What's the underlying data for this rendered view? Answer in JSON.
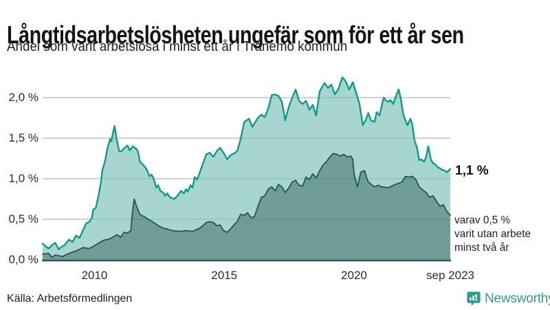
{
  "header": {
    "title": "Långtidsarbetslösheten ungefär som för ett år sen",
    "subtitle": "Andel som varit arbetslösa i minst ett år i Tranemo kommun"
  },
  "footer": {
    "source": "Källa: Arbetsförmedlingen",
    "brand": "Newsworthy",
    "brand_color": "#38998f"
  },
  "chart_data": {
    "type": "area",
    "title": "Långtidsarbetslösheten ungefär som för ett år sen",
    "subtitle": "Andel som varit arbetslösa i minst ett år i Tranemo kommun",
    "unit": "%",
    "grid": true,
    "legend_position": "none",
    "x_range": [
      2008.0,
      2023.71
    ],
    "ylim": [
      0,
      2.3
    ],
    "colors": {
      "series1_fill": "#a7d5cf",
      "series1_stroke": "#12988a",
      "series2_fill": "#6f9e99",
      "series2_stroke": "#2f4f4a",
      "gridline": "#d9d9d9",
      "axis": "#40514e"
    },
    "y_ticks": [
      {
        "label": "2,0 %",
        "value": 2.0
      },
      {
        "label": "1,5 %",
        "value": 1.5
      },
      {
        "label": "1,0 %",
        "value": 1.0
      },
      {
        "label": "0,5 %",
        "value": 0.5
      },
      {
        "label": "0,0 %",
        "value": 0.0
      }
    ],
    "x_ticks": [
      {
        "label": "2010",
        "value": 2010
      },
      {
        "label": "2015",
        "value": 2015
      },
      {
        "label": "2020",
        "value": 2020
      },
      {
        "label": "sep 2023",
        "value": 2023.71
      }
    ],
    "end_labels": {
      "primary": "1,1 %",
      "secondary_line1": "varav 0,5 %",
      "secondary_line2": "varit utan arbete",
      "secondary_line3": "minst två år"
    },
    "series": [
      {
        "name": "Arbetslösa minst ett år",
        "last_value": 1.1,
        "points": [
          [
            2008.0,
            0.2
          ],
          [
            2008.1,
            0.17
          ],
          [
            2008.23,
            0.14
          ],
          [
            2008.35,
            0.18
          ],
          [
            2008.49,
            0.21
          ],
          [
            2008.62,
            0.13
          ],
          [
            2008.73,
            0.16
          ],
          [
            2008.84,
            0.18
          ],
          [
            2009.02,
            0.25
          ],
          [
            2009.15,
            0.22
          ],
          [
            2009.29,
            0.3
          ],
          [
            2009.42,
            0.27
          ],
          [
            2009.55,
            0.36
          ],
          [
            2009.68,
            0.45
          ],
          [
            2009.81,
            0.47
          ],
          [
            2009.9,
            0.52
          ],
          [
            2009.95,
            0.62
          ],
          [
            2010.05,
            0.64
          ],
          [
            2010.15,
            0.79
          ],
          [
            2010.25,
            0.96
          ],
          [
            2010.3,
            1.1
          ],
          [
            2010.4,
            1.21
          ],
          [
            2010.5,
            1.38
          ],
          [
            2010.6,
            1.49
          ],
          [
            2010.65,
            1.46
          ],
          [
            2010.7,
            1.55
          ],
          [
            2010.77,
            1.65
          ],
          [
            2010.85,
            1.49
          ],
          [
            2010.95,
            1.34
          ],
          [
            2011.05,
            1.34
          ],
          [
            2011.15,
            1.38
          ],
          [
            2011.27,
            1.41
          ],
          [
            2011.35,
            1.35
          ],
          [
            2011.48,
            1.4
          ],
          [
            2011.6,
            1.37
          ],
          [
            2011.67,
            1.34
          ],
          [
            2011.75,
            1.21
          ],
          [
            2011.85,
            1.18
          ],
          [
            2011.93,
            1.15
          ],
          [
            2012.0,
            1.12
          ],
          [
            2012.12,
            1.03
          ],
          [
            2012.2,
            1.05
          ],
          [
            2012.28,
            1.0
          ],
          [
            2012.38,
            0.89
          ],
          [
            2012.45,
            0.92
          ],
          [
            2012.54,
            0.85
          ],
          [
            2012.65,
            0.83
          ],
          [
            2012.72,
            0.79
          ],
          [
            2012.8,
            0.82
          ],
          [
            2012.91,
            0.77
          ],
          [
            2013.07,
            0.75
          ],
          [
            2013.2,
            0.79
          ],
          [
            2013.33,
            0.85
          ],
          [
            2013.45,
            0.82
          ],
          [
            2013.52,
            0.87
          ],
          [
            2013.6,
            0.84
          ],
          [
            2013.7,
            0.92
          ],
          [
            2013.78,
            0.89
          ],
          [
            2013.86,
            1.02
          ],
          [
            2013.95,
            0.99
          ],
          [
            2014.05,
            1.07
          ],
          [
            2014.18,
            1.19
          ],
          [
            2014.31,
            1.3
          ],
          [
            2014.44,
            1.32
          ],
          [
            2014.58,
            1.27
          ],
          [
            2014.71,
            1.34
          ],
          [
            2014.84,
            1.38
          ],
          [
            2014.97,
            1.32
          ],
          [
            2015.11,
            1.24
          ],
          [
            2015.24,
            1.29
          ],
          [
            2015.37,
            1.31
          ],
          [
            2015.5,
            1.34
          ],
          [
            2015.63,
            1.49
          ],
          [
            2015.77,
            1.7
          ],
          [
            2015.95,
            1.74
          ],
          [
            2016.08,
            1.64
          ],
          [
            2016.2,
            1.7
          ],
          [
            2016.3,
            1.75
          ],
          [
            2016.43,
            1.79
          ],
          [
            2016.56,
            1.76
          ],
          [
            2016.69,
            1.86
          ],
          [
            2016.83,
            2.03
          ],
          [
            2016.96,
            2.04
          ],
          [
            2017.09,
            2.02
          ],
          [
            2017.22,
            1.95
          ],
          [
            2017.35,
            1.72
          ],
          [
            2017.49,
            1.89
          ],
          [
            2017.62,
            2.0
          ],
          [
            2017.75,
            2.1
          ],
          [
            2017.88,
            1.96
          ],
          [
            2018.02,
            1.92
          ],
          [
            2018.15,
            1.96
          ],
          [
            2018.28,
            1.85
          ],
          [
            2018.41,
            1.91
          ],
          [
            2018.54,
            1.78
          ],
          [
            2018.68,
            2.08
          ],
          [
            2018.86,
            2.18
          ],
          [
            2019.0,
            2.12
          ],
          [
            2019.13,
            2.16
          ],
          [
            2019.26,
            2.04
          ],
          [
            2019.39,
            2.1
          ],
          [
            2019.55,
            2.25
          ],
          [
            2019.68,
            2.2
          ],
          [
            2019.81,
            2.1
          ],
          [
            2019.95,
            2.19
          ],
          [
            2020.08,
            2.06
          ],
          [
            2020.21,
            1.92
          ],
          [
            2020.34,
            1.66
          ],
          [
            2020.45,
            1.72
          ],
          [
            2020.55,
            1.81
          ],
          [
            2020.65,
            1.72
          ],
          [
            2020.79,
            1.7
          ],
          [
            2020.87,
            1.82
          ],
          [
            2020.98,
            1.78
          ],
          [
            2021.06,
            1.89
          ],
          [
            2021.14,
            2.0
          ],
          [
            2021.24,
            1.96
          ],
          [
            2021.32,
            1.95
          ],
          [
            2021.4,
            1.97
          ],
          [
            2021.51,
            1.92
          ],
          [
            2021.64,
            2.04
          ],
          [
            2021.72,
            2.1
          ],
          [
            2021.8,
            1.99
          ],
          [
            2021.9,
            1.79
          ],
          [
            2021.98,
            1.72
          ],
          [
            2022.06,
            1.66
          ],
          [
            2022.17,
            1.74
          ],
          [
            2022.25,
            1.66
          ],
          [
            2022.33,
            1.47
          ],
          [
            2022.43,
            1.38
          ],
          [
            2022.51,
            1.23
          ],
          [
            2022.59,
            1.24
          ],
          [
            2022.7,
            1.21
          ],
          [
            2022.78,
            1.27
          ],
          [
            2022.86,
            1.4
          ],
          [
            2022.96,
            1.24
          ],
          [
            2023.04,
            1.19
          ],
          [
            2023.12,
            1.18
          ],
          [
            2023.23,
            1.14
          ],
          [
            2023.31,
            1.13
          ],
          [
            2023.39,
            1.11
          ],
          [
            2023.49,
            1.1
          ],
          [
            2023.57,
            1.08
          ],
          [
            2023.71,
            1.12
          ]
        ]
      },
      {
        "name": "varav arbetslösa minst två år",
        "last_value": 0.5,
        "points": [
          [
            2008.0,
            0.07
          ],
          [
            2008.23,
            0.08
          ],
          [
            2008.36,
            0.03
          ],
          [
            2008.49,
            0.06
          ],
          [
            2008.76,
            0.04
          ],
          [
            2009.02,
            0.08
          ],
          [
            2009.29,
            0.11
          ],
          [
            2009.55,
            0.15
          ],
          [
            2009.81,
            0.14
          ],
          [
            2010.08,
            0.19
          ],
          [
            2010.34,
            0.24
          ],
          [
            2010.61,
            0.26
          ],
          [
            2010.87,
            0.31
          ],
          [
            2011.01,
            0.28
          ],
          [
            2011.14,
            0.34
          ],
          [
            2011.27,
            0.33
          ],
          [
            2011.4,
            0.36
          ],
          [
            2011.45,
            0.55
          ],
          [
            2011.53,
            0.75
          ],
          [
            2011.6,
            0.68
          ],
          [
            2011.67,
            0.62
          ],
          [
            2011.75,
            0.56
          ],
          [
            2011.93,
            0.53
          ],
          [
            2012.12,
            0.49
          ],
          [
            2012.28,
            0.46
          ],
          [
            2012.46,
            0.42
          ],
          [
            2012.65,
            0.39
          ],
          [
            2012.8,
            0.38
          ],
          [
            2012.99,
            0.36
          ],
          [
            2013.25,
            0.35
          ],
          [
            2013.52,
            0.36
          ],
          [
            2013.78,
            0.35
          ],
          [
            2014.05,
            0.39
          ],
          [
            2014.18,
            0.42
          ],
          [
            2014.31,
            0.46
          ],
          [
            2014.44,
            0.47
          ],
          [
            2014.58,
            0.46
          ],
          [
            2014.71,
            0.42
          ],
          [
            2014.84,
            0.43
          ],
          [
            2014.97,
            0.36
          ],
          [
            2015.11,
            0.34
          ],
          [
            2015.24,
            0.38
          ],
          [
            2015.37,
            0.43
          ],
          [
            2015.5,
            0.47
          ],
          [
            2015.63,
            0.56
          ],
          [
            2015.77,
            0.55
          ],
          [
            2015.9,
            0.58
          ],
          [
            2016.03,
            0.52
          ],
          [
            2016.16,
            0.53
          ],
          [
            2016.3,
            0.66
          ],
          [
            2016.43,
            0.77
          ],
          [
            2016.56,
            0.79
          ],
          [
            2016.69,
            0.87
          ],
          [
            2016.83,
            0.9
          ],
          [
            2016.96,
            0.85
          ],
          [
            2017.09,
            0.93
          ],
          [
            2017.22,
            0.9
          ],
          [
            2017.35,
            0.83
          ],
          [
            2017.49,
            0.89
          ],
          [
            2017.62,
            0.96
          ],
          [
            2017.75,
            0.98
          ],
          [
            2017.88,
            0.92
          ],
          [
            2018.02,
            0.91
          ],
          [
            2018.15,
            1.02
          ],
          [
            2018.28,
            0.99
          ],
          [
            2018.41,
            1.06
          ],
          [
            2018.54,
            1.01
          ],
          [
            2018.68,
            1.1
          ],
          [
            2018.81,
            1.17
          ],
          [
            2018.94,
            1.21
          ],
          [
            2019.07,
            1.27
          ],
          [
            2019.2,
            1.31
          ],
          [
            2019.34,
            1.3
          ],
          [
            2019.47,
            1.28
          ],
          [
            2019.6,
            1.3
          ],
          [
            2019.74,
            1.27
          ],
          [
            2019.87,
            1.28
          ],
          [
            2019.95,
            1.24
          ],
          [
            2020.0,
            1.06
          ],
          [
            2020.13,
            0.9
          ],
          [
            2020.26,
            1.08
          ],
          [
            2020.4,
            1.1
          ],
          [
            2020.53,
            0.97
          ],
          [
            2020.66,
            0.93
          ],
          [
            2020.79,
            0.9
          ],
          [
            2020.93,
            0.92
          ],
          [
            2021.06,
            0.9
          ],
          [
            2021.32,
            0.89
          ],
          [
            2021.59,
            0.93
          ],
          [
            2021.85,
            0.96
          ],
          [
            2021.98,
            1.03
          ],
          [
            2022.12,
            1.02
          ],
          [
            2022.25,
            1.03
          ],
          [
            2022.38,
            0.99
          ],
          [
            2022.51,
            0.9
          ],
          [
            2022.65,
            0.86
          ],
          [
            2022.78,
            0.83
          ],
          [
            2022.91,
            0.77
          ],
          [
            2023.04,
            0.79
          ],
          [
            2023.18,
            0.72
          ],
          [
            2023.31,
            0.66
          ],
          [
            2023.44,
            0.68
          ],
          [
            2023.57,
            0.6
          ],
          [
            2023.64,
            0.57
          ],
          [
            2023.71,
            0.55
          ]
        ]
      }
    ]
  }
}
